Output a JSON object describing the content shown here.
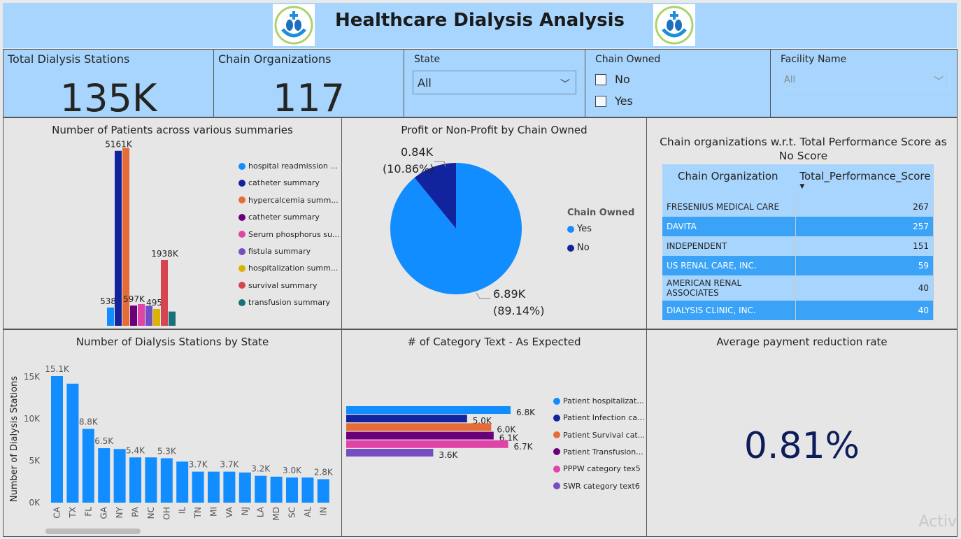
{
  "header": {
    "title": "Healthcare Dialysis Analysis",
    "logo_icon": "kidney-hands-icon"
  },
  "cards": [
    {
      "label": "Total Dialysis Stations",
      "value": "135K"
    },
    {
      "label": "Chain Organizations",
      "value": "117"
    }
  ],
  "slicers": {
    "state": {
      "label": "State",
      "value": "All"
    },
    "chain_owned": {
      "label": "Chain Owned",
      "options": [
        "No",
        "Yes"
      ]
    },
    "facility": {
      "label": "Facility Name",
      "value": "All"
    }
  },
  "patients_chart": {
    "title": "Number of Patients across various summaries",
    "chart_data": {
      "type": "bar",
      "categories": [
        "hospital readmission ...",
        "catheter summary",
        "hypercalcemia summ...",
        "catheter summary",
        "Serum phosphorus su...",
        "fistula summary",
        "hospitalization summ...",
        "survival summary",
        "transfusion summary"
      ],
      "values": [
        538,
        5161,
        5240,
        597,
        640,
        590,
        495,
        1938,
        420
      ],
      "data_labels": [
        "538K",
        "5161K",
        "",
        "597K",
        "",
        "",
        "495K",
        "1938K",
        ""
      ],
      "colors": [
        "#118dff",
        "#12239e",
        "#e66c37",
        "#6b007b",
        "#e044a7",
        "#744ec2",
        "#d9b300",
        "#d64550",
        "#197278"
      ],
      "ylim": [
        0,
        5300
      ]
    }
  },
  "pie_chart": {
    "title": "Profit or Non-Profit by Chain Owned",
    "legend_title": "Chain Owned",
    "chart_data": {
      "type": "pie",
      "slices": [
        {
          "name": "Yes",
          "value": 6.89,
          "label": "6.89K",
          "pct": "(89.14%)",
          "color": "#118dff"
        },
        {
          "name": "No",
          "value": 0.84,
          "label": "0.84K",
          "pct": "(10.86%)",
          "color": "#12239e"
        }
      ]
    }
  },
  "perf_table": {
    "title": "Chain organizations w.r.t. Total Performance Score as No Score",
    "headers": [
      "Chain Organization",
      "Total_Performance_Score"
    ],
    "rows": [
      {
        "org": "FRESENIUS MEDICAL CARE",
        "score": "267"
      },
      {
        "org": "DAVITA",
        "score": "257"
      },
      {
        "org": "INDEPENDENT",
        "score": "151"
      },
      {
        "org": "US RENAL CARE, INC.",
        "score": "59"
      },
      {
        "org": "AMERICAN RENAL ASSOCIATES",
        "score": "40"
      },
      {
        "org": "DIALYSIS CLINIC, INC.",
        "score": "40"
      }
    ]
  },
  "state_chart": {
    "title": "Number of Dialysis Stations by State",
    "chart_data": {
      "type": "bar",
      "categories": [
        "CA",
        "TX",
        "FL",
        "GA",
        "NY",
        "PA",
        "NC",
        "OH",
        "IL",
        "TN",
        "MI",
        "VA",
        "NJ",
        "LA",
        "MD",
        "SC",
        "AL",
        "IN"
      ],
      "values": [
        15.1,
        14.2,
        8.8,
        6.5,
        6.4,
        5.4,
        5.4,
        5.3,
        4.9,
        3.7,
        3.7,
        3.7,
        3.6,
        3.2,
        3.1,
        3.0,
        3.0,
        2.8
      ],
      "data_labels": [
        "15.1K",
        "",
        "8.8K",
        "6.5K",
        "",
        "5.4K",
        "",
        "5.3K",
        "",
        "3.7K",
        "",
        "3.7K",
        "",
        "3.2K",
        "",
        "3.0K",
        "",
        "2.8K"
      ],
      "ylabel": "Number of Dialysis Stations",
      "yticks": [
        "0K",
        "5K",
        "10K",
        "15K"
      ],
      "ylim": [
        0,
        15.1
      ],
      "color": "#118dff"
    }
  },
  "category_chart": {
    "title": "# of Category Text - As Expected",
    "chart_data": {
      "type": "bar",
      "orientation": "horizontal",
      "categories": [
        "Patient hospitalizat...",
        "Patient Infection ca...",
        "Patient Survival cat...",
        "Patient Transfusion...",
        "PPPW category tex5",
        "SWR category text6"
      ],
      "values": [
        6.8,
        5.0,
        6.0,
        6.1,
        6.7,
        3.6
      ],
      "data_labels": [
        "6.8K",
        "5.0K",
        "6.0K",
        "6.1K",
        "6.7K",
        "3.6K"
      ],
      "colors": [
        "#118dff",
        "#12239e",
        "#e66c37",
        "#6b007b",
        "#e044a7",
        "#744ec2"
      ],
      "xlim": [
        0,
        6.8
      ]
    }
  },
  "payment_card": {
    "title": "Average payment reduction rate",
    "value": "0.81%"
  },
  "watermark": "Activ"
}
